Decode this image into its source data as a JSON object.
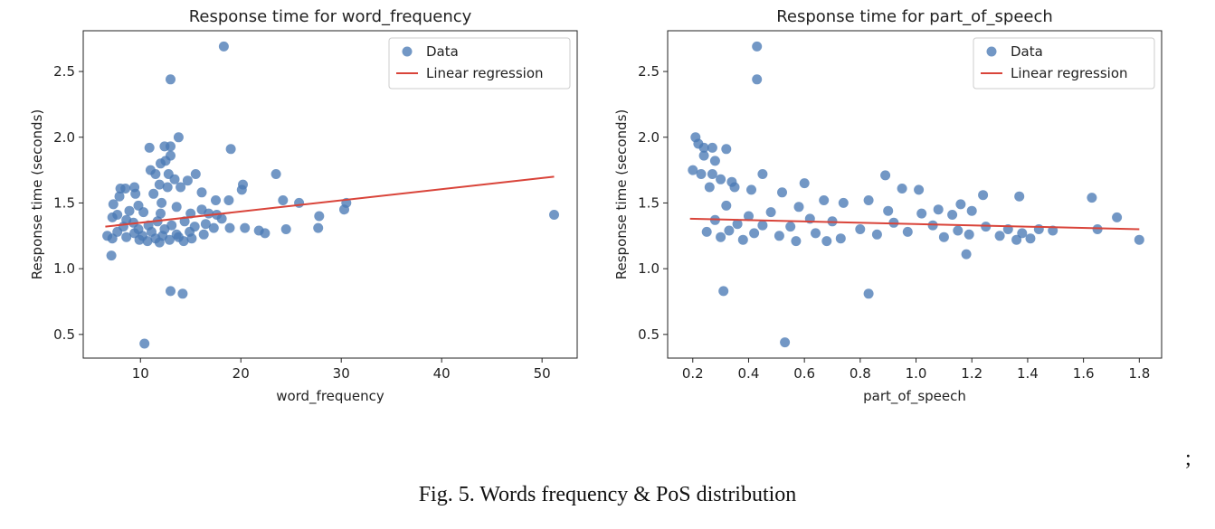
{
  "chart_data": [
    {
      "type": "scatter",
      "title": "Response time for word_frequency",
      "xlabel": "word_frequency",
      "ylabel": "Response time (seconds)",
      "xlim": [
        4.3,
        53.5
      ],
      "ylim": [
        0.32,
        2.81
      ],
      "xticks": [
        10,
        20,
        30,
        40,
        50
      ],
      "yticks": [
        0.5,
        1.0,
        1.5,
        2.0,
        2.5
      ],
      "legend_position": "top-right",
      "legend": [
        "Data",
        "Linear regression"
      ],
      "series": [
        {
          "name": "Data",
          "kind": "scatter",
          "color": "#4a7ab5",
          "points": [
            [
              18.3,
              2.69
            ],
            [
              13.0,
              2.44
            ],
            [
              13.8,
              2.0
            ],
            [
              13.0,
              1.93
            ],
            [
              10.9,
              1.92
            ],
            [
              12.4,
              1.93
            ],
            [
              19.0,
              1.91
            ],
            [
              13.0,
              1.86
            ],
            [
              12.5,
              1.82
            ],
            [
              12.0,
              1.8
            ],
            [
              11.0,
              1.75
            ],
            [
              11.5,
              1.72
            ],
            [
              15.5,
              1.72
            ],
            [
              23.5,
              1.72
            ],
            [
              12.8,
              1.72
            ],
            [
              13.4,
              1.68
            ],
            [
              14.7,
              1.67
            ],
            [
              11.9,
              1.64
            ],
            [
              20.2,
              1.64
            ],
            [
              12.7,
              1.62
            ],
            [
              20.1,
              1.6
            ],
            [
              8.5,
              1.61
            ],
            [
              8.0,
              1.61
            ],
            [
              9.4,
              1.62
            ],
            [
              14.0,
              1.62
            ],
            [
              16.1,
              1.58
            ],
            [
              9.5,
              1.57
            ],
            [
              11.3,
              1.57
            ],
            [
              7.9,
              1.55
            ],
            [
              17.5,
              1.52
            ],
            [
              18.8,
              1.52
            ],
            [
              24.2,
              1.52
            ],
            [
              25.8,
              1.5
            ],
            [
              30.5,
              1.5
            ],
            [
              12.1,
              1.5
            ],
            [
              7.3,
              1.49
            ],
            [
              9.8,
              1.48
            ],
            [
              13.6,
              1.47
            ],
            [
              16.1,
              1.45
            ],
            [
              30.3,
              1.45
            ],
            [
              8.9,
              1.44
            ],
            [
              10.3,
              1.43
            ],
            [
              12.0,
              1.42
            ],
            [
              15.0,
              1.42
            ],
            [
              16.8,
              1.42
            ],
            [
              7.7,
              1.41
            ],
            [
              17.6,
              1.41
            ],
            [
              51.2,
              1.41
            ],
            [
              27.8,
              1.4
            ],
            [
              7.2,
              1.39
            ],
            [
              18.1,
              1.38
            ],
            [
              8.6,
              1.37
            ],
            [
              11.7,
              1.36
            ],
            [
              14.4,
              1.36
            ],
            [
              9.3,
              1.35
            ],
            [
              16.5,
              1.34
            ],
            [
              10.8,
              1.33
            ],
            [
              13.1,
              1.33
            ],
            [
              8.3,
              1.32
            ],
            [
              15.4,
              1.32
            ],
            [
              17.3,
              1.31
            ],
            [
              18.9,
              1.31
            ],
            [
              20.4,
              1.31
            ],
            [
              27.7,
              1.31
            ],
            [
              9.8,
              1.3
            ],
            [
              12.4,
              1.3
            ],
            [
              21.8,
              1.29
            ],
            [
              24.5,
              1.3
            ],
            [
              22.4,
              1.27
            ],
            [
              7.7,
              1.28
            ],
            [
              11.1,
              1.28
            ],
            [
              14.9,
              1.28
            ],
            [
              9.4,
              1.27
            ],
            [
              13.6,
              1.26
            ],
            [
              16.3,
              1.26
            ],
            [
              6.7,
              1.25
            ],
            [
              10.2,
              1.25
            ],
            [
              12.2,
              1.25
            ],
            [
              8.6,
              1.24
            ],
            [
              13.8,
              1.24
            ],
            [
              7.2,
              1.23
            ],
            [
              11.5,
              1.23
            ],
            [
              15.1,
              1.23
            ],
            [
              9.9,
              1.22
            ],
            [
              12.9,
              1.22
            ],
            [
              10.7,
              1.21
            ],
            [
              14.3,
              1.21
            ],
            [
              11.9,
              1.2
            ],
            [
              7.1,
              1.1
            ],
            [
              13.0,
              0.83
            ],
            [
              14.2,
              0.81
            ],
            [
              10.4,
              0.43
            ]
          ]
        },
        {
          "name": "Linear regression",
          "kind": "line",
          "color": "#d9443a",
          "points": [
            [
              6.5,
              1.32
            ],
            [
              51.2,
              1.7
            ]
          ]
        }
      ]
    },
    {
      "type": "scatter",
      "title": "Response time for part_of_speech",
      "xlabel": "part_of_speech",
      "ylabel": "Response time (seconds)",
      "xlim": [
        0.11,
        1.88
      ],
      "ylim": [
        0.32,
        2.81
      ],
      "xticks": [
        0.2,
        0.4,
        0.6,
        0.8,
        1.0,
        1.2,
        1.4,
        1.6,
        1.8
      ],
      "yticks": [
        0.5,
        1.0,
        1.5,
        2.0,
        2.5
      ],
      "legend_position": "top-right",
      "legend": [
        "Data",
        "Linear regression"
      ],
      "series": [
        {
          "name": "Data",
          "kind": "scatter",
          "color": "#4a7ab5",
          "points": [
            [
              0.43,
              2.69
            ],
            [
              0.43,
              2.44
            ],
            [
              0.21,
              2.0
            ],
            [
              0.22,
              1.95
            ],
            [
              0.24,
              1.92
            ],
            [
              0.27,
              1.92
            ],
            [
              0.32,
              1.91
            ],
            [
              0.24,
              1.86
            ],
            [
              0.28,
              1.82
            ],
            [
              0.2,
              1.75
            ],
            [
              0.23,
              1.72
            ],
            [
              0.27,
              1.72
            ],
            [
              0.45,
              1.72
            ],
            [
              0.89,
              1.71
            ],
            [
              0.3,
              1.68
            ],
            [
              0.34,
              1.66
            ],
            [
              0.6,
              1.65
            ],
            [
              0.26,
              1.62
            ],
            [
              0.35,
              1.62
            ],
            [
              0.95,
              1.61
            ],
            [
              1.01,
              1.6
            ],
            [
              0.41,
              1.6
            ],
            [
              0.52,
              1.58
            ],
            [
              1.24,
              1.56
            ],
            [
              1.37,
              1.55
            ],
            [
              1.63,
              1.54
            ],
            [
              0.83,
              1.52
            ],
            [
              0.67,
              1.52
            ],
            [
              1.16,
              1.49
            ],
            [
              0.74,
              1.5
            ],
            [
              0.32,
              1.48
            ],
            [
              0.58,
              1.47
            ],
            [
              1.08,
              1.45
            ],
            [
              1.2,
              1.44
            ],
            [
              0.9,
              1.44
            ],
            [
              0.48,
              1.43
            ],
            [
              1.02,
              1.42
            ],
            [
              1.13,
              1.41
            ],
            [
              0.4,
              1.4
            ],
            [
              1.72,
              1.39
            ],
            [
              0.62,
              1.38
            ],
            [
              0.28,
              1.37
            ],
            [
              0.7,
              1.36
            ],
            [
              0.92,
              1.35
            ],
            [
              0.36,
              1.34
            ],
            [
              1.06,
              1.33
            ],
            [
              0.45,
              1.33
            ],
            [
              1.25,
              1.32
            ],
            [
              0.55,
              1.32
            ],
            [
              1.33,
              1.3
            ],
            [
              1.44,
              1.3
            ],
            [
              1.65,
              1.3
            ],
            [
              0.8,
              1.3
            ],
            [
              0.33,
              1.29
            ],
            [
              1.15,
              1.29
            ],
            [
              0.97,
              1.28
            ],
            [
              1.49,
              1.29
            ],
            [
              0.25,
              1.28
            ],
            [
              0.64,
              1.27
            ],
            [
              1.38,
              1.27
            ],
            [
              0.42,
              1.27
            ],
            [
              1.19,
              1.26
            ],
            [
              0.86,
              1.26
            ],
            [
              1.3,
              1.25
            ],
            [
              0.51,
              1.25
            ],
            [
              1.41,
              1.23
            ],
            [
              0.3,
              1.24
            ],
            [
              1.1,
              1.24
            ],
            [
              0.73,
              1.23
            ],
            [
              1.8,
              1.22
            ],
            [
              0.38,
              1.22
            ],
            [
              1.36,
              1.22
            ],
            [
              0.57,
              1.21
            ],
            [
              0.68,
              1.21
            ],
            [
              1.18,
              1.11
            ],
            [
              0.31,
              0.83
            ],
            [
              0.83,
              0.81
            ],
            [
              0.53,
              0.44
            ]
          ]
        },
        {
          "name": "Linear regression",
          "kind": "line",
          "color": "#d9443a",
          "points": [
            [
              0.19,
              1.38
            ],
            [
              1.8,
              1.3
            ]
          ]
        }
      ]
    }
  ],
  "figure": {
    "caption": "Fig. 5. Words frequency & PoS distribution",
    "trailing_mark": ";"
  }
}
